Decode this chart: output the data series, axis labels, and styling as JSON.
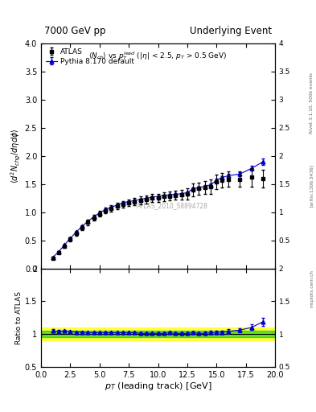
{
  "title_left": "7000 GeV pp",
  "title_right": "Underlying Event",
  "watermark": "ATLAS_2010_S8894728",
  "xlabel": "p_{T} (leading track) [GeV]",
  "ylabel_main": "\\langle d^2 N_{chg}/d\\eta d\\phi \\rangle",
  "ylabel_ratio": "Ratio to ATLAS",
  "right_label": "Rivet 3.1.10, 500k events",
  "arxiv_label": "[arXiv:1306.3436]",
  "mcplots_label": "mcplots.cern.ch",
  "atlas_x": [
    1.0,
    1.5,
    2.0,
    2.5,
    3.0,
    3.5,
    4.0,
    4.5,
    5.0,
    5.5,
    6.0,
    6.5,
    7.0,
    7.5,
    8.0,
    8.5,
    9.0,
    9.5,
    10.0,
    10.5,
    11.0,
    11.5,
    12.0,
    12.5,
    13.0,
    13.5,
    14.0,
    14.5,
    15.0,
    15.5,
    16.0,
    17.0,
    18.0,
    19.0
  ],
  "atlas_y": [
    0.19,
    0.29,
    0.4,
    0.52,
    0.63,
    0.73,
    0.82,
    0.9,
    0.97,
    1.03,
    1.07,
    1.11,
    1.14,
    1.17,
    1.19,
    1.21,
    1.23,
    1.25,
    1.26,
    1.28,
    1.29,
    1.3,
    1.31,
    1.33,
    1.4,
    1.42,
    1.44,
    1.46,
    1.54,
    1.57,
    1.59,
    1.59,
    1.62,
    1.6
  ],
  "atlas_yerr": [
    0.02,
    0.02,
    0.03,
    0.03,
    0.04,
    0.04,
    0.05,
    0.05,
    0.05,
    0.05,
    0.06,
    0.06,
    0.06,
    0.06,
    0.06,
    0.07,
    0.07,
    0.07,
    0.07,
    0.08,
    0.08,
    0.08,
    0.09,
    0.1,
    0.11,
    0.11,
    0.12,
    0.13,
    0.13,
    0.13,
    0.14,
    0.14,
    0.16,
    0.16
  ],
  "pythia_x": [
    1.0,
    1.5,
    2.0,
    2.5,
    3.0,
    3.5,
    4.0,
    4.5,
    5.0,
    5.5,
    6.0,
    6.5,
    7.0,
    7.5,
    8.0,
    8.5,
    9.0,
    9.5,
    10.0,
    10.5,
    11.0,
    11.5,
    12.0,
    12.5,
    13.0,
    13.5,
    14.0,
    14.5,
    15.0,
    15.5,
    16.0,
    17.0,
    18.0,
    19.0
  ],
  "pythia_y": [
    0.2,
    0.3,
    0.42,
    0.54,
    0.65,
    0.75,
    0.84,
    0.92,
    0.99,
    1.05,
    1.09,
    1.13,
    1.17,
    1.19,
    1.21,
    1.23,
    1.25,
    1.27,
    1.28,
    1.3,
    1.31,
    1.32,
    1.33,
    1.35,
    1.42,
    1.44,
    1.46,
    1.49,
    1.57,
    1.62,
    1.65,
    1.68,
    1.78,
    1.9
  ],
  "pythia_yerr": [
    0.003,
    0.004,
    0.005,
    0.006,
    0.006,
    0.007,
    0.008,
    0.008,
    0.009,
    0.009,
    0.01,
    0.01,
    0.01,
    0.011,
    0.011,
    0.012,
    0.012,
    0.012,
    0.013,
    0.013,
    0.014,
    0.015,
    0.016,
    0.017,
    0.018,
    0.02,
    0.022,
    0.024,
    0.025,
    0.027,
    0.03,
    0.033,
    0.04,
    0.055
  ],
  "ratio_pythia_y": [
    1.05,
    1.04,
    1.05,
    1.04,
    1.03,
    1.03,
    1.02,
    1.02,
    1.02,
    1.02,
    1.02,
    1.02,
    1.02,
    1.02,
    1.02,
    1.01,
    1.01,
    1.01,
    1.01,
    1.01,
    1.02,
    1.01,
    1.01,
    1.01,
    1.02,
    1.01,
    1.01,
    1.02,
    1.02,
    1.03,
    1.04,
    1.06,
    1.1,
    1.19
  ],
  "ratio_pythia_yerr": [
    0.02,
    0.018,
    0.016,
    0.013,
    0.012,
    0.012,
    0.011,
    0.011,
    0.01,
    0.01,
    0.01,
    0.01,
    0.009,
    0.01,
    0.01,
    0.01,
    0.01,
    0.01,
    0.01,
    0.011,
    0.012,
    0.012,
    0.013,
    0.015,
    0.016,
    0.018,
    0.022,
    0.025,
    0.025,
    0.025,
    0.03,
    0.033,
    0.043,
    0.06
  ],
  "green_band_lo": 0.95,
  "green_band_hi": 1.05,
  "yellow_band_lo": 0.9,
  "yellow_band_hi": 1.1,
  "xlim": [
    0,
    20
  ],
  "ylim_main": [
    0,
    4
  ],
  "ylim_ratio": [
    0.5,
    2.0
  ],
  "atlas_color": "#000000",
  "pythia_color": "#0000cc",
  "background_color": "#ffffff",
  "plot_bg": "#ffffff"
}
